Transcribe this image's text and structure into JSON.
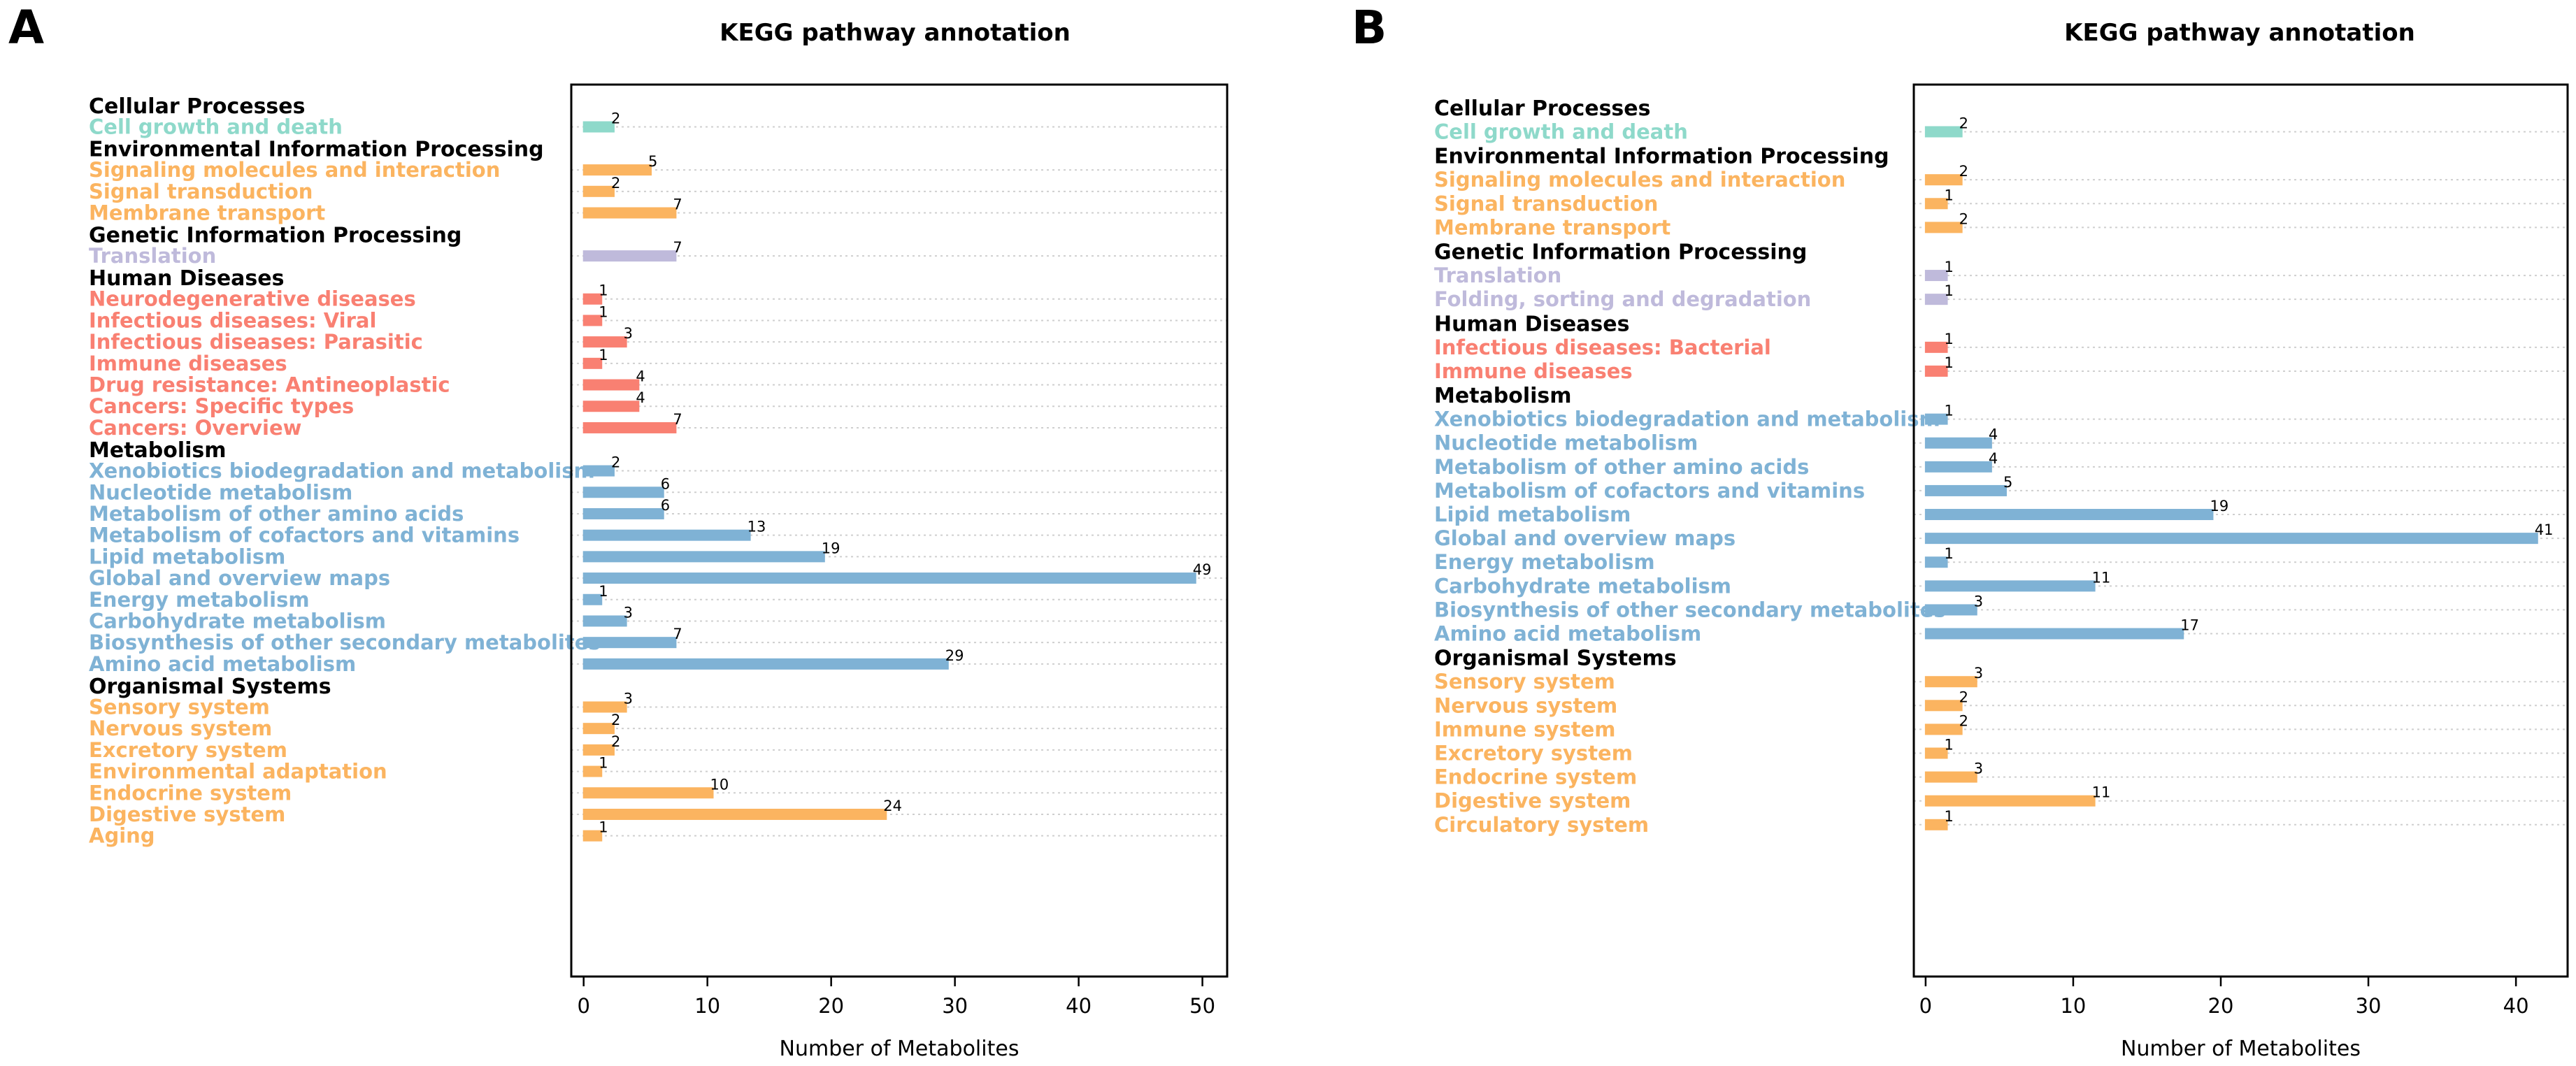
{
  "colors": {
    "Cellular Processes": "#8ed9ca",
    "Environmental Information Processing": "#fbb460",
    "Genetic Information Processing": "#bfbadb",
    "Human Diseases": "#f98072",
    "Metabolism": "#7fb2d5",
    "Organismal Systems": "#fbb460"
  },
  "chart_data": [
    {
      "type": "bar",
      "orientation": "horizontal",
      "panel": "A",
      "title": "KEGG pathway annotation",
      "xlabel": "Number of Metabolites",
      "xlim": [
        -1,
        52
      ],
      "xticks": [
        0,
        10,
        20,
        30,
        40,
        50
      ],
      "groups": [
        {
          "name": "Cellular Processes",
          "items": [
            {
              "label": "Cell growth and death",
              "value": 2
            }
          ]
        },
        {
          "name": "Environmental Information Processing",
          "items": [
            {
              "label": "Signaling molecules and interaction",
              "value": 5
            },
            {
              "label": "Signal transduction",
              "value": 2
            },
            {
              "label": "Membrane transport",
              "value": 7
            }
          ]
        },
        {
          "name": "Genetic Information Processing",
          "items": [
            {
              "label": "Translation",
              "value": 7
            }
          ]
        },
        {
          "name": "Human Diseases",
          "items": [
            {
              "label": "Neurodegenerative diseases",
              "value": 1
            },
            {
              "label": "Infectious diseases: Viral",
              "value": 1
            },
            {
              "label": "Infectious diseases: Parasitic",
              "value": 3
            },
            {
              "label": "Immune diseases",
              "value": 1
            },
            {
              "label": "Drug resistance: Antineoplastic",
              "value": 4
            },
            {
              "label": "Cancers: Specific types",
              "value": 4
            },
            {
              "label": "Cancers: Overview",
              "value": 7
            }
          ]
        },
        {
          "name": "Metabolism",
          "items": [
            {
              "label": "Xenobiotics biodegradation and metabolism",
              "value": 2
            },
            {
              "label": "Nucleotide metabolism",
              "value": 6
            },
            {
              "label": "Metabolism of other amino acids",
              "value": 6
            },
            {
              "label": "Metabolism of cofactors and vitamins",
              "value": 13
            },
            {
              "label": "Lipid metabolism",
              "value": 19
            },
            {
              "label": "Global and overview maps",
              "value": 49
            },
            {
              "label": "Energy metabolism",
              "value": 1
            },
            {
              "label": "Carbohydrate metabolism",
              "value": 3
            },
            {
              "label": "Biosynthesis of other secondary metabolites",
              "value": 7
            },
            {
              "label": "Amino acid metabolism",
              "value": 29
            }
          ]
        },
        {
          "name": "Organismal Systems",
          "items": [
            {
              "label": "Sensory system",
              "value": 3
            },
            {
              "label": "Nervous system",
              "value": 2
            },
            {
              "label": "Excretory system",
              "value": 2
            },
            {
              "label": "Environmental adaptation",
              "value": 1
            },
            {
              "label": "Endocrine system",
              "value": 10
            },
            {
              "label": "Digestive system",
              "value": 24
            },
            {
              "label": "Aging",
              "value": 1
            }
          ]
        }
      ]
    },
    {
      "type": "bar",
      "orientation": "horizontal",
      "panel": "B",
      "title": "KEGG pathway annotation",
      "xlabel": "Number of Metabolites",
      "xlim": [
        -0.8,
        43.5
      ],
      "xticks": [
        0,
        10,
        20,
        30,
        40
      ],
      "groups": [
        {
          "name": "Cellular Processes",
          "items": [
            {
              "label": "Cell growth and death",
              "value": 2
            }
          ]
        },
        {
          "name": "Environmental Information Processing",
          "items": [
            {
              "label": "Signaling molecules and interaction",
              "value": 2
            },
            {
              "label": "Signal transduction",
              "value": 1
            },
            {
              "label": "Membrane transport",
              "value": 2
            }
          ]
        },
        {
          "name": "Genetic Information Processing",
          "items": [
            {
              "label": "Translation",
              "value": 1
            },
            {
              "label": "Folding, sorting and degradation",
              "value": 1
            }
          ]
        },
        {
          "name": "Human Diseases",
          "items": [
            {
              "label": "Infectious diseases: Bacterial",
              "value": 1
            },
            {
              "label": "Immune diseases",
              "value": 1
            }
          ]
        },
        {
          "name": "Metabolism",
          "items": [
            {
              "label": "Xenobiotics biodegradation and metabolism",
              "value": 1
            },
            {
              "label": "Nucleotide metabolism",
              "value": 4
            },
            {
              "label": "Metabolism of other amino acids",
              "value": 4
            },
            {
              "label": "Metabolism of cofactors and vitamins",
              "value": 5
            },
            {
              "label": "Lipid metabolism",
              "value": 19
            },
            {
              "label": "Global and overview maps",
              "value": 41
            },
            {
              "label": "Energy metabolism",
              "value": 1
            },
            {
              "label": "Carbohydrate metabolism",
              "value": 11
            },
            {
              "label": "Biosynthesis of other secondary metabolites",
              "value": 3
            },
            {
              "label": "Amino acid metabolism",
              "value": 17
            }
          ]
        },
        {
          "name": "Organismal Systems",
          "items": [
            {
              "label": "Sensory system",
              "value": 3
            },
            {
              "label": "Nervous system",
              "value": 2
            },
            {
              "label": "Immune system",
              "value": 2
            },
            {
              "label": "Excretory system",
              "value": 1
            },
            {
              "label": "Endocrine system",
              "value": 3
            },
            {
              "label": "Digestive system",
              "value": 11
            },
            {
              "label": "Circulatory system",
              "value": 1
            }
          ]
        }
      ]
    }
  ]
}
